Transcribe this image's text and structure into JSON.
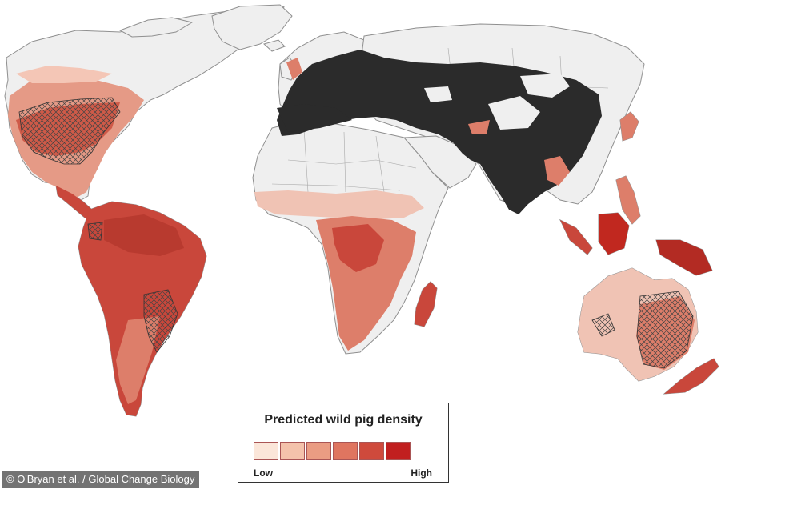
{
  "legend": {
    "title": "Predicted wild pig density",
    "low_label": "Low",
    "high_label": "High",
    "colors": [
      "#fbe6d9",
      "#f4c2ab",
      "#ea9c83",
      "#df7560",
      "#cf4a3c",
      "#c11f1f"
    ]
  },
  "credit": "© O'Bryan et al. / Global Change Biology",
  "map_colors": {
    "land": "#efefef",
    "border": "#9a9a9a",
    "native_range": "#2b2b2b",
    "high": "#c9473b",
    "mid": "#dd7e6a",
    "low": "#f0c3b4",
    "hatch": "#444444"
  }
}
